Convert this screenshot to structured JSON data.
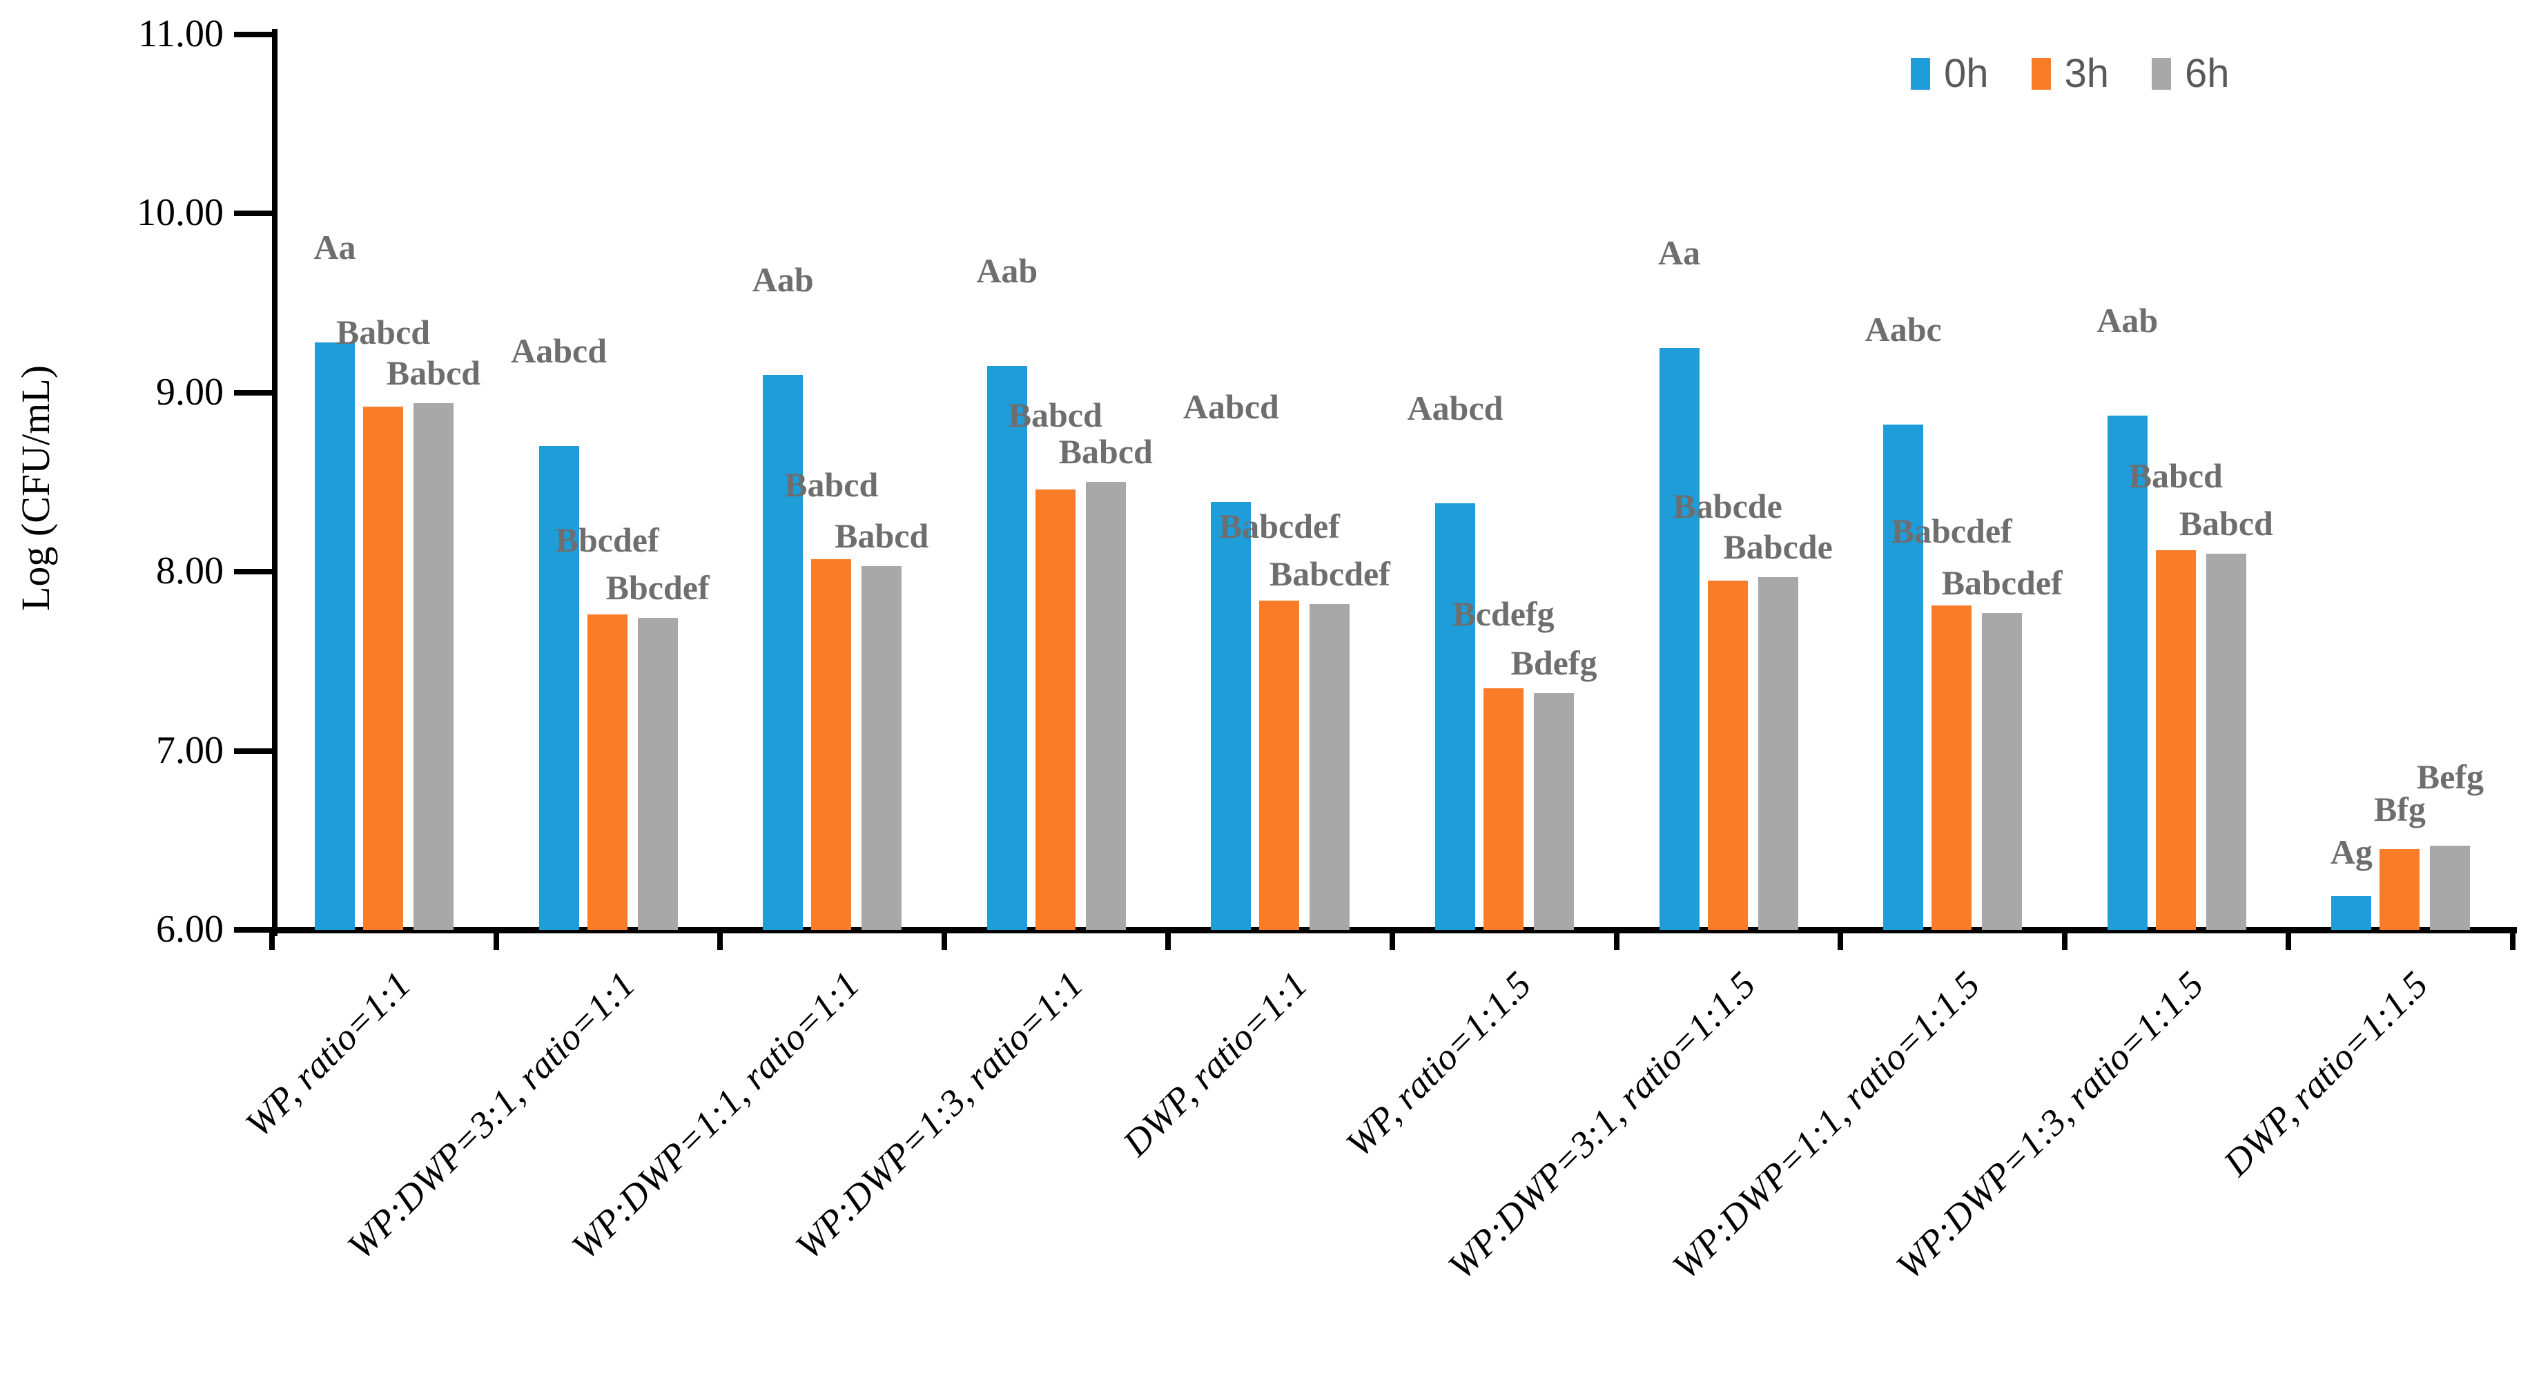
{
  "chart_data": {
    "type": "bar",
    "title": "",
    "xlabel": "",
    "ylabel": "Log (CFU/mL)",
    "ylim": [
      6,
      11
    ],
    "ytick_step": 1,
    "ytick_labels": [
      "6.00",
      "7.00",
      "8.00",
      "9.00",
      "10.00",
      "11.00"
    ],
    "grid": false,
    "legend_position": "top-right",
    "categories": [
      "WP, ratio=1:1",
      "WP:DWP=3:1, ratio=1:1",
      "WP:DWP=1:1, ratio=1:1",
      "WP:DWP=1:3, ratio=1:1",
      "DWP, ratio=1:1",
      "WP, ratio=1:1.5",
      "WP:DWP=3:1, ratio=1:1.5",
      "WP:DWP=1:1, ratio=1:1.5",
      "WP:DWP=1:3, ratio=1:1.5",
      "DWP, ratio=1:1.5"
    ],
    "series": [
      {
        "name": "0h",
        "color": "#1f9dd9",
        "values": [
          9.28,
          8.7,
          9.1,
          9.15,
          8.39,
          8.38,
          9.25,
          8.82,
          8.87,
          6.19
        ]
      },
      {
        "name": "3h",
        "color": "#f97d28",
        "values": [
          8.92,
          7.76,
          8.07,
          8.46,
          7.84,
          7.35,
          7.95,
          7.81,
          8.12,
          6.45
        ]
      },
      {
        "name": "6h",
        "color": "#a8a8a8",
        "values": [
          8.94,
          7.74,
          8.03,
          8.5,
          7.82,
          7.32,
          7.97,
          7.77,
          8.1,
          6.47
        ]
      }
    ],
    "bar_labels": [
      [
        "Aa",
        "Babcd",
        "Babcd"
      ],
      [
        "Aabcd",
        "Bbcdef",
        "Bbcdef"
      ],
      [
        "Aab",
        "Babcd",
        "Babcd"
      ],
      [
        "Aab",
        "Babcd",
        "Babcd"
      ],
      [
        "Aabcd",
        "Babcdef",
        "Babcdef"
      ],
      [
        "Aabcd",
        "Bcdefg",
        "Bdefg"
      ],
      [
        "Aa",
        "Babcde",
        "Babcde"
      ],
      [
        "Aabc",
        "Babcdef",
        "Babcdef"
      ],
      [
        "Aab",
        "Babcd",
        "Babcd"
      ],
      [
        "Ag",
        "Bfg",
        "Befg"
      ]
    ],
    "bar_label_color": "#6e6e6e",
    "legend_text_color": "#595959",
    "axis_color": "#000000"
  }
}
